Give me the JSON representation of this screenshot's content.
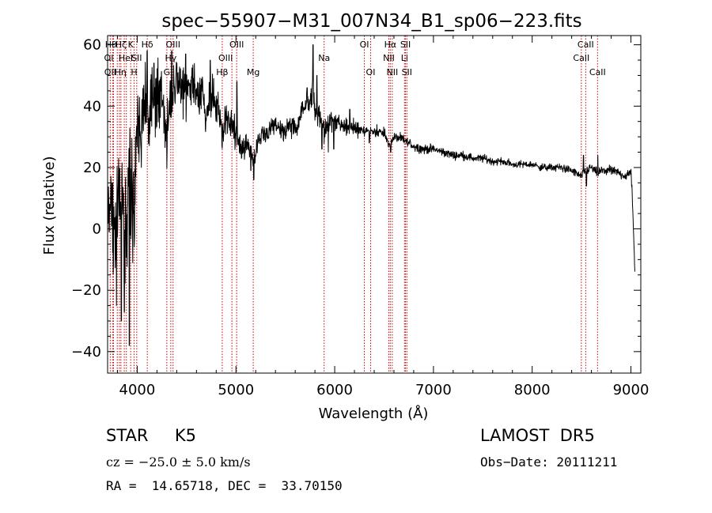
{
  "chart_data": {
    "type": "line",
    "title": "spec−55907−M31_007N34_B1_sp06−223.fits",
    "xlabel": "Wavelength (Å)",
    "ylabel": "Flux (relative)",
    "xlim": [
      3700,
      9100
    ],
    "ylim": [
      -47,
      63
    ],
    "x_ticks": [
      4000,
      5000,
      6000,
      7000,
      8000,
      9000
    ],
    "y_ticks": [
      -40,
      -20,
      0,
      20,
      40,
      60
    ],
    "y_tick_labels": [
      "−40",
      "−20",
      "0",
      "20",
      "40",
      "60"
    ],
    "grid": false,
    "line_color": "#000000",
    "marker_color": "#cc0000",
    "series": [
      {
        "anchors": [
          [
            3700,
            3
          ],
          [
            3740,
            8
          ],
          [
            3770,
            -5
          ],
          [
            3800,
            10
          ],
          [
            3830,
            2
          ],
          [
            3860,
            8
          ],
          [
            3890,
            -12
          ],
          [
            3910,
            20
          ],
          [
            3940,
            15
          ],
          [
            3970,
            6
          ],
          [
            4000,
            38
          ],
          [
            4040,
            30
          ],
          [
            4080,
            45
          ],
          [
            4120,
            33
          ],
          [
            4160,
            44
          ],
          [
            4200,
            40
          ],
          [
            4250,
            48
          ],
          [
            4300,
            31
          ],
          [
            4330,
            42
          ],
          [
            4380,
            46
          ],
          [
            4450,
            47
          ],
          [
            4500,
            44
          ],
          [
            4560,
            48
          ],
          [
            4600,
            43
          ],
          [
            4650,
            46
          ],
          [
            4700,
            38
          ],
          [
            4760,
            44
          ],
          [
            4820,
            40
          ],
          [
            4860,
            30
          ],
          [
            4900,
            36
          ],
          [
            4960,
            34
          ],
          [
            5000,
            30
          ],
          [
            5060,
            28
          ],
          [
            5100,
            26
          ],
          [
            5150,
            25
          ],
          [
            5180,
            23
          ],
          [
            5230,
            29
          ],
          [
            5300,
            31
          ],
          [
            5400,
            33
          ],
          [
            5500,
            32
          ],
          [
            5550,
            34
          ],
          [
            5600,
            32
          ],
          [
            5650,
            36
          ],
          [
            5700,
            40
          ],
          [
            5750,
            42
          ],
          [
            5780,
            46
          ],
          [
            5800,
            38
          ],
          [
            5850,
            37
          ],
          [
            5900,
            31
          ],
          [
            5950,
            36
          ],
          [
            6000,
            35
          ],
          [
            6100,
            33
          ],
          [
            6200,
            33
          ],
          [
            6300,
            32
          ],
          [
            6400,
            32
          ],
          [
            6500,
            31
          ],
          [
            6563,
            27
          ],
          [
            6600,
            30
          ],
          [
            6700,
            29
          ],
          [
            6800,
            27
          ],
          [
            6900,
            26
          ],
          [
            7000,
            26
          ],
          [
            7100,
            25
          ],
          [
            7200,
            24
          ],
          [
            7300,
            24
          ],
          [
            7400,
            23
          ],
          [
            7500,
            23
          ],
          [
            7600,
            22
          ],
          [
            7700,
            22
          ],
          [
            7800,
            21
          ],
          [
            7900,
            21
          ],
          [
            8000,
            21
          ],
          [
            8100,
            20
          ],
          [
            8200,
            20
          ],
          [
            8300,
            20
          ],
          [
            8400,
            19
          ],
          [
            8498,
            17
          ],
          [
            8542,
            19
          ],
          [
            8600,
            20
          ],
          [
            8662,
            18
          ],
          [
            8700,
            19
          ],
          [
            8800,
            19
          ],
          [
            8900,
            18
          ],
          [
            8960,
            17
          ],
          [
            9000,
            19
          ],
          [
            9010,
            14
          ],
          [
            9020,
            5
          ],
          [
            9030,
            -4
          ],
          [
            9035,
            -10
          ],
          [
            9040,
            -14
          ]
        ],
        "noise": [
          [
            3700,
            10
          ],
          [
            3900,
            22
          ],
          [
            4000,
            14
          ],
          [
            4300,
            10
          ],
          [
            4800,
            6
          ],
          [
            5300,
            3
          ],
          [
            5800,
            4
          ],
          [
            6000,
            3
          ],
          [
            6500,
            1.6
          ],
          [
            7000,
            1.4
          ],
          [
            8000,
            1.1
          ],
          [
            9000,
            1.6
          ]
        ],
        "spikes": [
          [
            3790,
            -25
          ],
          [
            3840,
            -30
          ],
          [
            3870,
            -27
          ],
          [
            3920,
            -38
          ],
          [
            4100,
            58
          ],
          [
            4170,
            54
          ],
          [
            4350,
            58
          ],
          [
            4400,
            54
          ],
          [
            4490,
            57
          ],
          [
            4740,
            55
          ],
          [
            5010,
            48
          ],
          [
            5150,
            19
          ],
          [
            5180,
            16
          ],
          [
            5720,
            46
          ],
          [
            5780,
            60
          ],
          [
            5820,
            50
          ],
          [
            5870,
            26
          ],
          [
            5935,
            25
          ],
          [
            5990,
            26
          ],
          [
            6153,
            39
          ],
          [
            6350,
            28
          ],
          [
            6566,
            25
          ],
          [
            8520,
            24
          ],
          [
            8550,
            14
          ],
          [
            8665,
            24
          ]
        ]
      }
    ],
    "line_markers": [
      {
        "w": 3727,
        "row": 2,
        "label": "OII",
        "dx": 0
      },
      {
        "w": 3750,
        "row": 0,
        "label": "Hθ",
        "dx": -2
      },
      {
        "w": 3760,
        "row": 1,
        "label": "OI",
        "dx": -6
      },
      {
        "w": 3798,
        "row": 2,
        "label": "Hη",
        "dx": 4
      },
      {
        "w": 3820,
        "row": 1,
        "label": "HeI",
        "dx": 8
      },
      {
        "w": 3835,
        "row": 0,
        "label": "Hζ",
        "dx": 0
      },
      {
        "w": 3869,
        "row": 0,
        "label": "",
        "dx": 0
      },
      {
        "w": 3890,
        "row": 2,
        "label": "",
        "dx": 0
      },
      {
        "w": 3934,
        "row": 0,
        "label": "K",
        "dx": 0
      },
      {
        "w": 3969,
        "row": 2,
        "label": "H",
        "dx": 0
      },
      {
        "w": 3995,
        "row": 1,
        "label": "SII",
        "dx": 0
      },
      {
        "w": 4102,
        "row": 0,
        "label": "Hδ",
        "dx": 0
      },
      {
        "w": 4300,
        "row": 2,
        "label": "G",
        "dx": 0
      },
      {
        "w": 4340,
        "row": 1,
        "label": "Hγ",
        "dx": 0
      },
      {
        "w": 4363,
        "row": 0,
        "label": "OIII",
        "dx": 0
      },
      {
        "w": 4861,
        "row": 2,
        "label": "Hβ",
        "dx": 0
      },
      {
        "w": 4959,
        "row": 1,
        "label": "OIII",
        "dx": -8
      },
      {
        "w": 5007,
        "row": 0,
        "label": "OIII",
        "dx": 0
      },
      {
        "w": 5175,
        "row": 2,
        "label": "Mg",
        "dx": 0
      },
      {
        "w": 5893,
        "row": 1,
        "label": "Na",
        "dx": 0
      },
      {
        "w": 6300,
        "row": 0,
        "label": "OI",
        "dx": 0
      },
      {
        "w": 6364,
        "row": 2,
        "label": "OI",
        "dx": 0
      },
      {
        "w": 6548,
        "row": 1,
        "label": "NII",
        "dx": 0
      },
      {
        "w": 6563,
        "row": 0,
        "label": "Hα",
        "dx": 0
      },
      {
        "w": 6583,
        "row": 2,
        "label": "NII",
        "dx": 0
      },
      {
        "w": 6707,
        "row": 1,
        "label": "Li",
        "dx": 0
      },
      {
        "w": 6717,
        "row": 0,
        "label": "SII",
        "dx": 0
      },
      {
        "w": 6731,
        "row": 2,
        "label": "SII",
        "dx": 0
      },
      {
        "w": 8498,
        "row": 1,
        "label": "CaII",
        "dx": 0
      },
      {
        "w": 8542,
        "row": 0,
        "label": "CaII",
        "dx": 0
      },
      {
        "w": 8662,
        "row": 2,
        "label": "CaII",
        "dx": 0
      }
    ]
  },
  "info": {
    "class_line": "STAR     K5",
    "survey": "LAMOST  DR5",
    "cz_line": "cz = −25.0 ± 5.0 km/s",
    "obs_date": "Obs−Date: 20111211",
    "radec": "RA =  14.65718, DEC =  33.70150"
  }
}
